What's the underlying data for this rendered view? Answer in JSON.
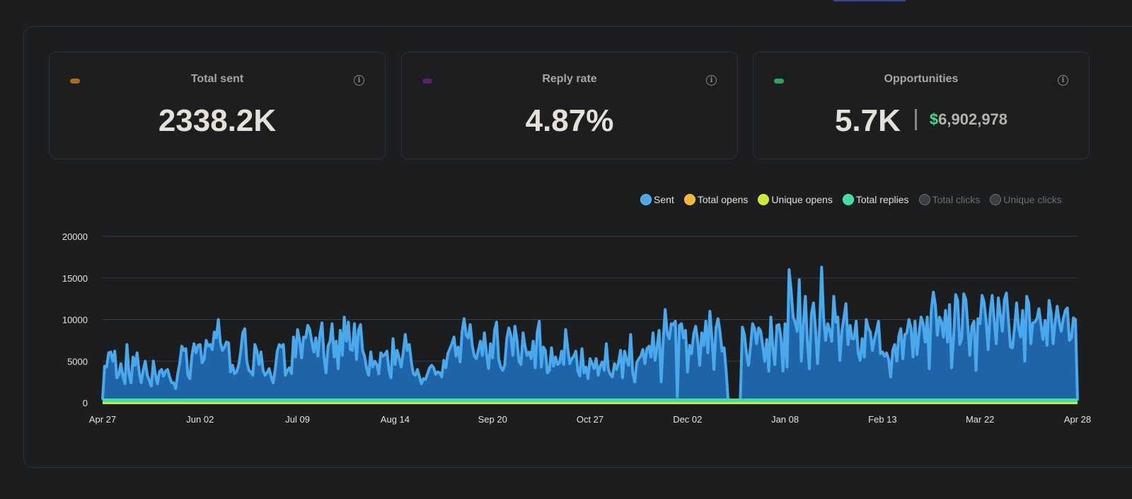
{
  "cards": [
    {
      "title": "Total sent",
      "value": "2338.2K",
      "swatch": "#b06a18"
    },
    {
      "title": "Reply rate",
      "value": "4.87%",
      "swatch": "#5a2170"
    },
    {
      "title": "Opportunities",
      "value": "5.7K",
      "amount_symbol": "$",
      "amount": "6,902,978",
      "swatch": "#2fa35a"
    }
  ],
  "legend": [
    {
      "label": "Sent",
      "color": "#4aa8ec",
      "active": true
    },
    {
      "label": "Total opens",
      "color": "#f5b731",
      "active": true
    },
    {
      "label": "Unique opens",
      "color": "#cbe832",
      "active": true
    },
    {
      "label": "Total replies",
      "color": "#3de0a0",
      "active": true
    },
    {
      "label": "Total clicks",
      "color": "#3a3f44",
      "active": false
    },
    {
      "label": "Unique clicks",
      "color": "#3a3f44",
      "active": false
    }
  ],
  "chart_data": {
    "type": "area",
    "x_ticks": [
      "Apr 27",
      "Jun 02",
      "Jul 09",
      "Aug 14",
      "Sep 20",
      "Oct 27",
      "Dec 02",
      "Jan 08",
      "Feb 13",
      "Mar 22",
      "Apr 28"
    ],
    "y_ticks": [
      "0",
      "5000",
      "10000",
      "15000",
      "20000"
    ],
    "ylim": [
      0,
      20000
    ],
    "grid": true,
    "legend_position": "top-right",
    "series": [
      {
        "name": "Sent",
        "color": "#4aa8ec",
        "values": [
          500,
          4400,
          4300,
          6000,
          6100,
          5000,
          6200,
          3000,
          3400,
          4700,
          3200,
          2300,
          7000,
          3500,
          2400,
          5500,
          4500,
          6000,
          3700,
          2400,
          3900,
          5000,
          3300,
          2700,
          2000,
          5000,
          3400,
          2300,
          3700,
          4000,
          3200,
          3800,
          4000,
          3100,
          2400,
          2400,
          1700,
          3400,
          4800,
          6800,
          6300,
          6500,
          3300,
          2900,
          5700,
          7100,
          6000,
          6900,
          7000,
          4800,
          5200,
          7500,
          6800,
          7000,
          6400,
          8500,
          7800,
          10000,
          7200,
          6300,
          6700,
          7300,
          7200,
          3700,
          4500,
          3500,
          3700,
          4500,
          6100,
          8400,
          8900,
          5000,
          3900,
          3700,
          3300,
          7000,
          6200,
          4600,
          6100,
          3900,
          3300,
          3600,
          4100,
          3100,
          2400,
          4000,
          6200,
          7000,
          6700,
          7000,
          3300,
          3900,
          4200,
          3500,
          7900,
          5500,
          8800,
          7500,
          5400,
          7900,
          7800,
          9300,
          8800,
          7300,
          6100,
          7800,
          5600,
          8200,
          9600,
          5600,
          3600,
          6800,
          7400,
          9500,
          5500,
          7400,
          4100,
          8700,
          5700,
          10300,
          7400,
          9700,
          6400,
          6300,
          9500,
          5200,
          8700,
          9400,
          6300,
          5600,
          4100,
          3300,
          6100,
          4300,
          5000,
          4600,
          3500,
          6000,
          5600,
          5800,
          6200,
          3900,
          3000,
          7700,
          4600,
          6300,
          5400,
          4300,
          6000,
          8200,
          6300,
          7000,
          4900,
          3500,
          3300,
          4000,
          3100,
          2300,
          2900,
          2800,
          3500,
          4200,
          4500,
          4200,
          3400,
          3700,
          3600,
          3100,
          5100,
          4200,
          5900,
          6500,
          7100,
          7900,
          5600,
          6700,
          4900,
          8500,
          10100,
          8100,
          7800,
          9400,
          6900,
          5600,
          5300,
          6300,
          7400,
          5700,
          8400,
          5900,
          4100,
          7100,
          5400,
          8700,
          9700,
          5300,
          4300,
          3900,
          4500,
          7700,
          9000,
          8100,
          5700,
          9200,
          7600,
          5000,
          4600,
          8400,
          6800,
          5700,
          6100,
          5300,
          7400,
          4200,
          8500,
          9800,
          4300,
          6700,
          6300,
          3600,
          3900,
          6600,
          4400,
          5500,
          4600,
          4800,
          6200,
          4600,
          8800,
          6600,
          4700,
          5300,
          5600,
          6200,
          3800,
          3200,
          6500,
          3600,
          4300,
          2900,
          5300,
          4700,
          4100,
          5300,
          3300,
          4400,
          4900,
          3900,
          7100,
          4000,
          3400,
          3100,
          4700,
          4000,
          4800,
          6300,
          3000,
          6200,
          5100,
          4500,
          8200,
          3600,
          2500,
          4800,
          5300,
          5600,
          6400,
          4700,
          6500,
          6800,
          5500,
          8400,
          5100,
          6700,
          8700,
          2500,
          7500,
          11200,
          8300,
          7700,
          9500,
          9400,
          9800,
          700,
          9300,
          9500,
          7800,
          8700,
          3700,
          6900,
          5900,
          8200,
          9200,
          7400,
          4500,
          8400,
          6900,
          9800,
          6000,
          11000,
          7700,
          4000,
          9000,
          10100,
          8500,
          6200,
          6600,
          3900,
          200,
          200,
          200,
          200,
          200,
          200,
          400,
          9100,
          8200,
          5900,
          4500,
          6700,
          9500,
          8900,
          7100,
          9000,
          8600,
          6900,
          5000,
          7600,
          3800,
          10300,
          6600,
          4600,
          9300,
          9400,
          7800,
          3800,
          9500,
          4300,
          16000,
          13500,
          10300,
          9600,
          8600,
          14800,
          5000,
          9300,
          12800,
          7300,
          4100,
          10700,
          12000,
          8900,
          4700,
          9000,
          16300,
          10200,
          7500,
          9500,
          8700,
          7400,
          12800,
          9700,
          10300,
          5100,
          8600,
          10300,
          11900,
          7000,
          9300,
          7700,
          7700,
          9800,
          6000,
          5100,
          7700,
          5500,
          10000,
          9000,
          8500,
          6300,
          7600,
          8600,
          9800,
          5900,
          6100,
          5600,
          6000,
          5200,
          3100,
          6300,
          7000,
          5000,
          8000,
          8900,
          5300,
          8200,
          8400,
          10000,
          9000,
          5500,
          9800,
          5800,
          8400,
          10300,
          9500,
          7300,
          10300,
          4100,
          11100,
          13300,
          11800,
          8100,
          10300,
          9700,
          7900,
          11100,
          7300,
          11800,
          4200,
          7900,
          13000,
          12300,
          7000,
          7800,
          13100,
          12400,
          9200,
          5700,
          9200,
          9800,
          3900,
          10100,
          9500,
          12900,
          12100,
          9800,
          6400,
          10900,
          12900,
          9800,
          7100,
          12600,
          10600,
          8600,
          12400,
          13200,
          9900,
          6700,
          6600,
          9100,
          12000,
          9000,
          7900,
          11100,
          5000,
          12800,
          11900,
          7100,
          9600,
          9700,
          10100,
          11300,
          9400,
          7600,
          9900,
          6900,
          12300,
          10800,
          7100,
          9700,
          11600,
          9700,
          8600,
          10100,
          11100,
          11400,
          7500,
          7800,
          10200,
          10000,
          400
        ]
      },
      {
        "name": "Total opens",
        "color": "#f5b731",
        "values": [
          0
        ]
      },
      {
        "name": "Unique opens",
        "color": "#cbe832",
        "values": [
          0
        ]
      },
      {
        "name": "Total replies",
        "color": "#3de0a0",
        "values": [
          300
        ]
      }
    ]
  }
}
